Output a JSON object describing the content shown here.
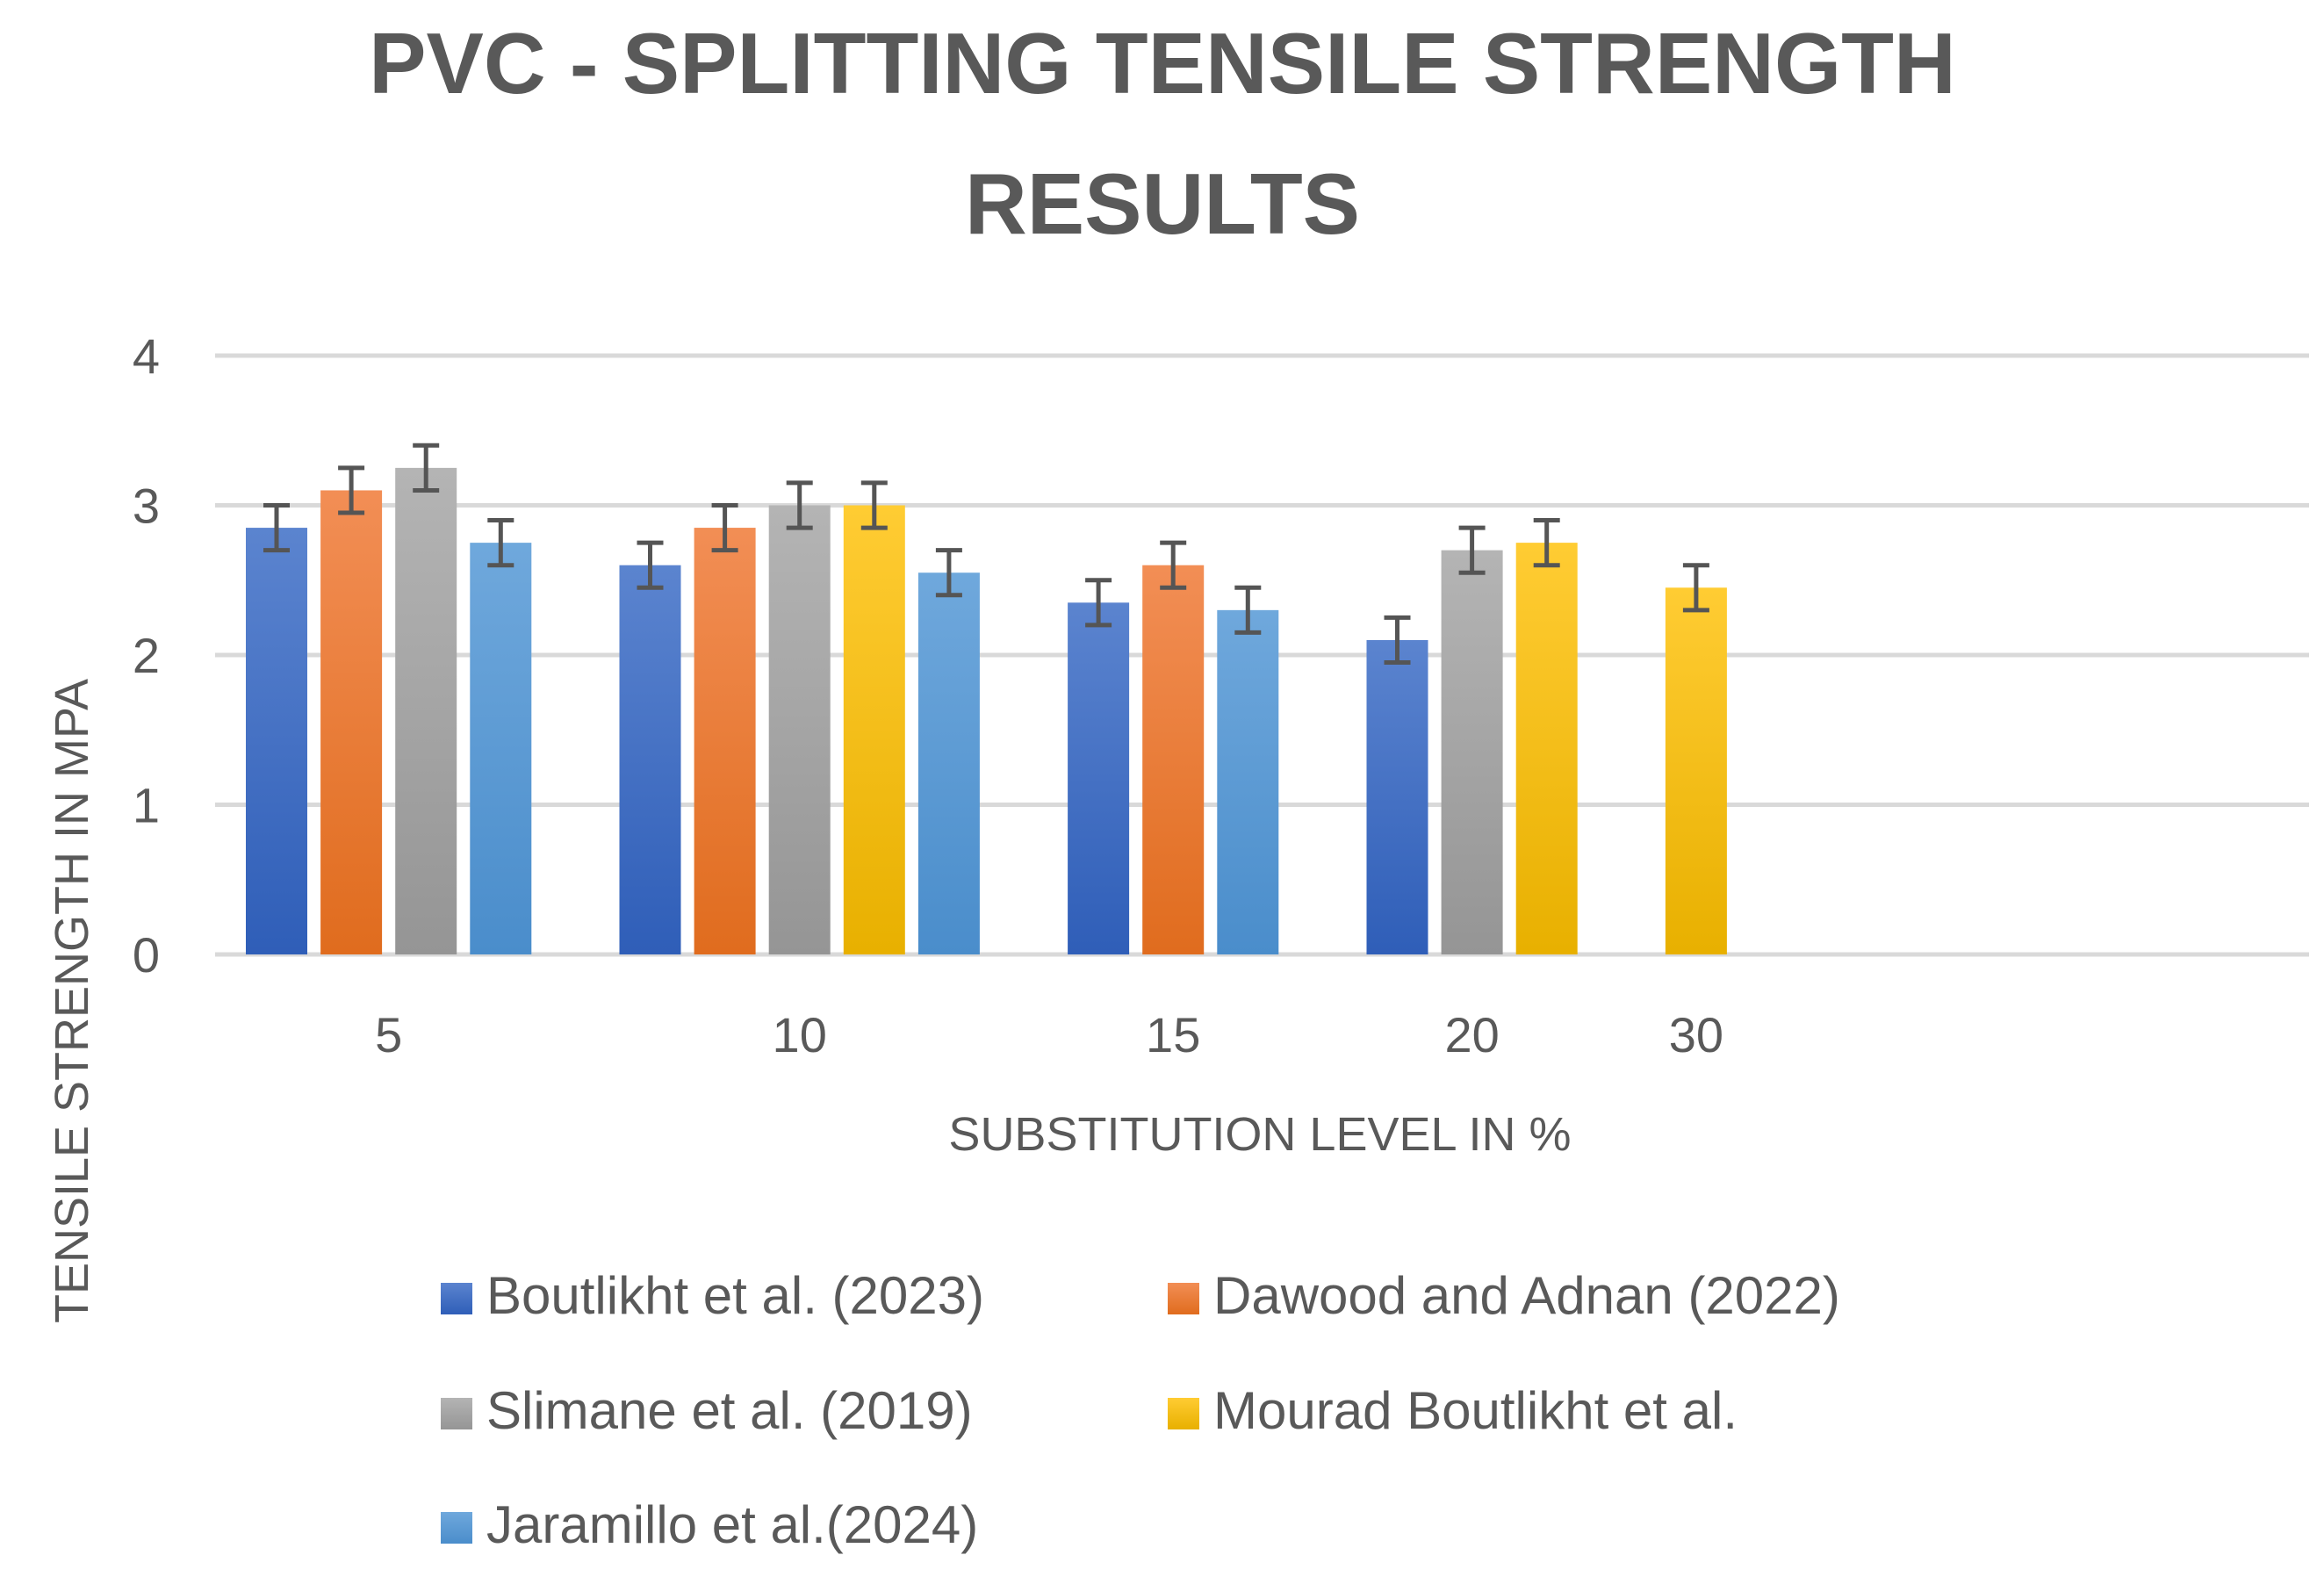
{
  "chart_data": {
    "type": "bar",
    "title": "PVC - SPLITTING TENSILE STRENGTH RESULTS",
    "title_lines": [
      "PVC - SPLITTING TENSILE STRENGTH",
      "RESULTS"
    ],
    "xlabel": "SUBSTITUTION LEVEL IN %",
    "ylabel": "TENSILE STRENGTH IN MPA",
    "ylim": [
      0,
      4
    ],
    "yticks": [
      "0",
      "1",
      "2",
      "3",
      "4"
    ],
    "grid": true,
    "legend_position": "bottom",
    "error_bar": 0.15,
    "categories": [
      "5",
      "10",
      "15",
      "20",
      "30"
    ],
    "series": [
      {
        "name": "Boutlikht et al. (2023)",
        "color": "#4472C4",
        "values": [
          2.85,
          2.6,
          2.35,
          2.1,
          null
        ]
      },
      {
        "name": "Dawood and Adnan (2022)",
        "color": "#ED7D31",
        "values": [
          3.1,
          2.85,
          2.6,
          null,
          null
        ]
      },
      {
        "name": "Slimane et al. (2019)",
        "color": "#A5A5A5",
        "values": [
          3.25,
          3.0,
          null,
          2.7,
          null
        ]
      },
      {
        "name": "Mourad Boutlikht et al.",
        "color": "#FFC000",
        "values": [
          null,
          3.0,
          null,
          2.75,
          2.45
        ]
      },
      {
        "name": "Jaramillo et al.(2024)",
        "color": "#5B9BD5",
        "values": [
          2.75,
          2.55,
          2.3,
          null,
          null
        ]
      }
    ]
  }
}
